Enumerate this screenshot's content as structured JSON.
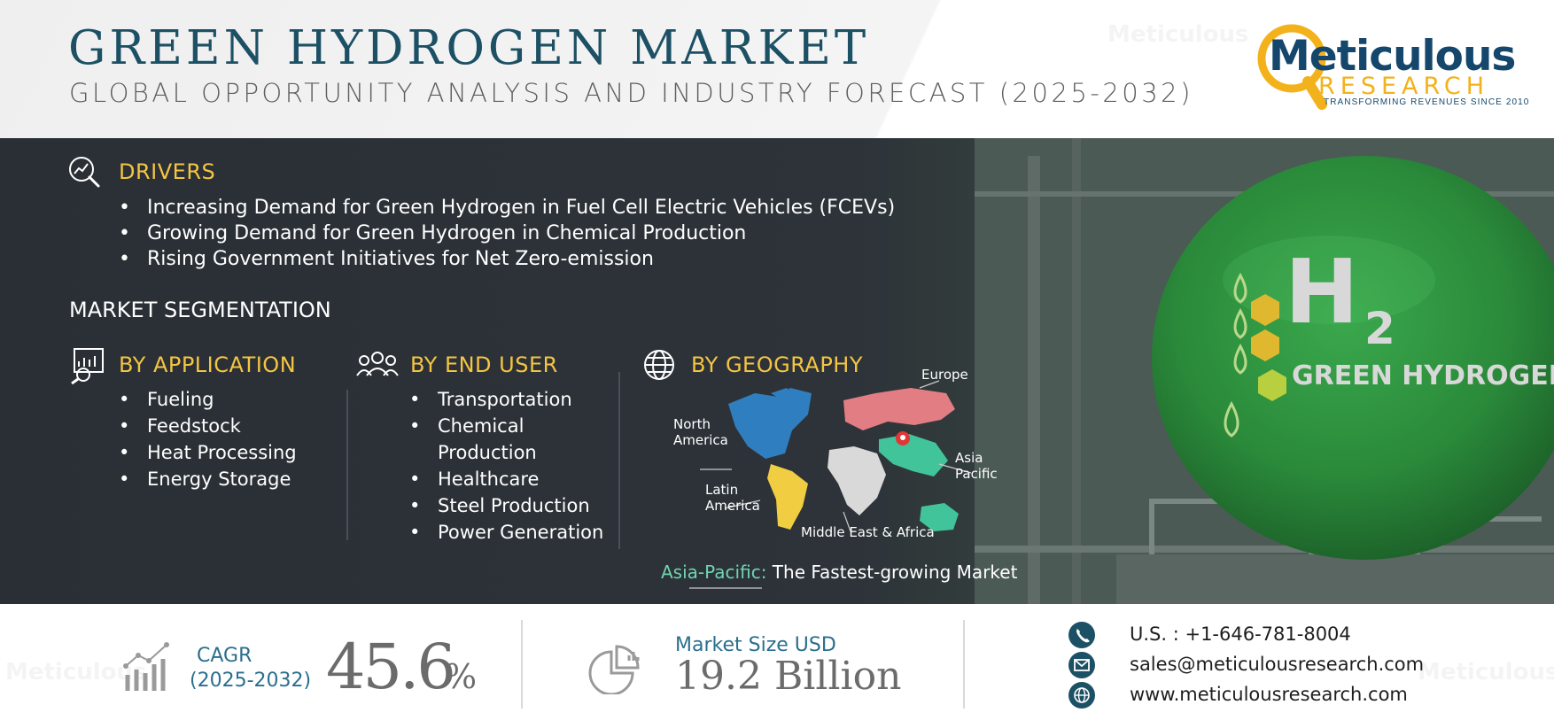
{
  "header": {
    "title": "GREEN HYDROGEN MARKET",
    "subtitle": "GLOBAL OPPORTUNITY ANALYSIS AND INDUSTRY FORECAST (2025-2032)"
  },
  "logo": {
    "name": "Meticulous",
    "sub": "RESEARCH",
    "tagline": "TRANSFORMING REVENUES SINCE 2010"
  },
  "drivers": {
    "title": "DRIVERS",
    "items": [
      "Increasing Demand for Green Hydrogen in Fuel Cell Electric Vehicles (FCEVs)",
      "Growing Demand for Green Hydrogen in Chemical Production",
      "Rising Government Initiatives for Net Zero-emission"
    ]
  },
  "segmentation": {
    "heading": "MARKET SEGMENTATION",
    "application": {
      "title": "BY APPLICATION",
      "items": [
        "Fueling",
        "Feedstock",
        "Heat Processing",
        "Energy Storage"
      ]
    },
    "end_user": {
      "title": "BY END USER",
      "items": [
        "Transportation",
        "Chemical",
        "Production",
        "Healthcare",
        "Steel Production",
        "Power Generation"
      ]
    },
    "geography": {
      "title": "BY GEOGRAPHY",
      "regions": {
        "europe": "Europe",
        "north_america_1": "North",
        "north_america_2": "America",
        "asia_pacific_1": "Asia",
        "asia_pacific_2": "Pacific",
        "latin_america_1": "Latin",
        "latin_america_2": "America",
        "mea": "Middle East & Africa"
      },
      "fastest_highlight": "Asia-Pacific:",
      "fastest_rest": " The Fastest-growing Market"
    }
  },
  "hero": {
    "h2_letter": "H",
    "h2_subscript": "2",
    "tank_label": "GREEN HYDROGEN"
  },
  "stats": {
    "cagr_label": "CAGR",
    "cagr_range": "(2025-2032)",
    "cagr_value": "45.6",
    "cagr_unit": "%",
    "market_size_label": "Market Size USD",
    "market_size_value": "19.2 Billion"
  },
  "contact": {
    "phone": "U.S. : +1-646-781-8004",
    "email": "sales@meticulousresearch.com",
    "web": "www.meticulousresearch.com"
  },
  "colors": {
    "title": "#1c5064",
    "accent_yellow": "#f5c542",
    "band_dark": "#2d3339",
    "teal_text": "#2a6f8c",
    "tank_green": "#2f8f3e"
  }
}
